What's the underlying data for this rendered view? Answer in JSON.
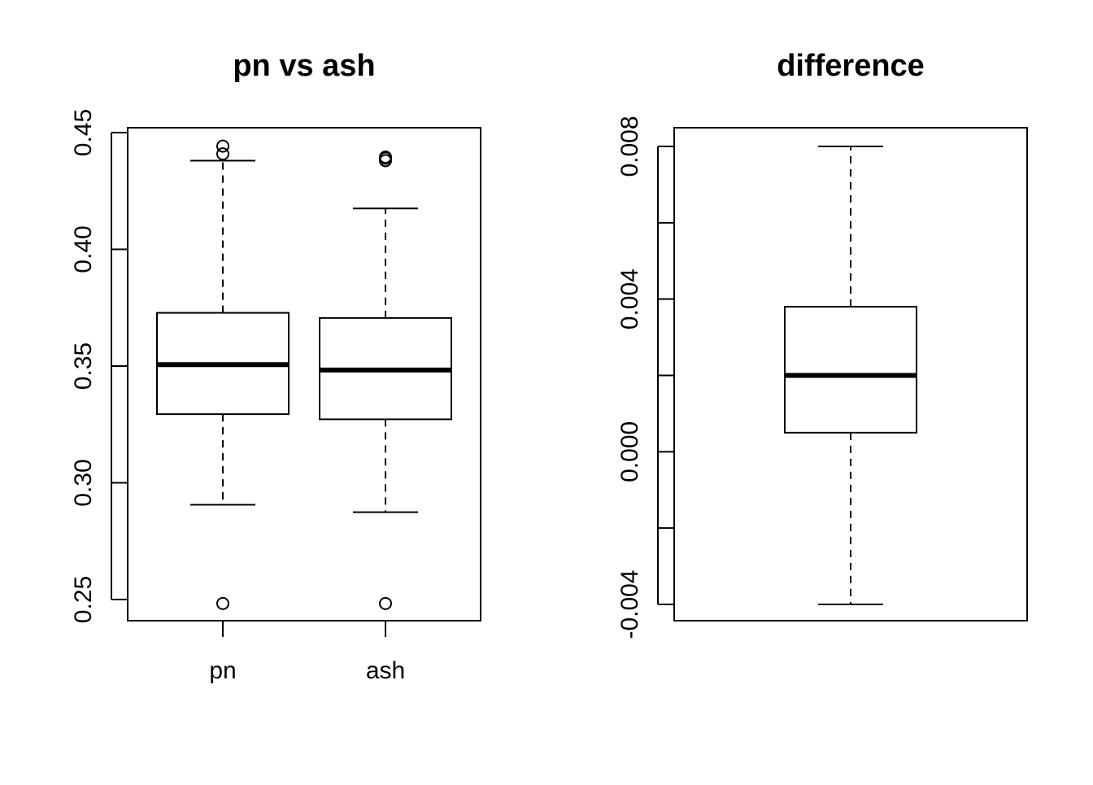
{
  "chart_data": [
    {
      "type": "box",
      "title": "pn vs ash",
      "xlabel": "",
      "ylabel": "",
      "ylim": [
        0.24,
        0.451
      ],
      "yticks": [
        0.25,
        0.3,
        0.35,
        0.4,
        0.45
      ],
      "ytick_labels": [
        "0.25",
        "0.30",
        "0.35",
        "0.40",
        "0.45"
      ],
      "categories": [
        "pn",
        "ash"
      ],
      "boxes": [
        {
          "category": "pn",
          "whisker_low": 0.2906,
          "q1": 0.3294,
          "median": 0.3506,
          "q3": 0.3728,
          "whisker_high": 0.438,
          "outliers": [
            0.2483,
            0.4409,
            0.4442
          ]
        },
        {
          "category": "ash",
          "whisker_low": 0.2874,
          "q1": 0.3272,
          "median": 0.3483,
          "q3": 0.3706,
          "whisker_high": 0.4175,
          "outliers": [
            0.2483,
            0.438,
            0.439,
            0.4395
          ]
        }
      ],
      "grid": false
    },
    {
      "type": "box",
      "title": "difference",
      "xlabel": "",
      "ylabel": "",
      "ylim": [
        -0.0045,
        0.0085
      ],
      "yticks": [
        -0.004,
        -0.002,
        0.0,
        0.002,
        0.004,
        0.006,
        0.008
      ],
      "ytick_labels": [
        "-0.004",
        "",
        "0.000",
        "",
        "0.004",
        "",
        "0.008"
      ],
      "categories": [
        ""
      ],
      "boxes": [
        {
          "category": "",
          "whisker_low": -0.004,
          "q1": 0.0005,
          "median": 0.002,
          "q3": 0.0038,
          "whisker_high": 0.008,
          "outliers": []
        }
      ],
      "grid": false
    }
  ]
}
